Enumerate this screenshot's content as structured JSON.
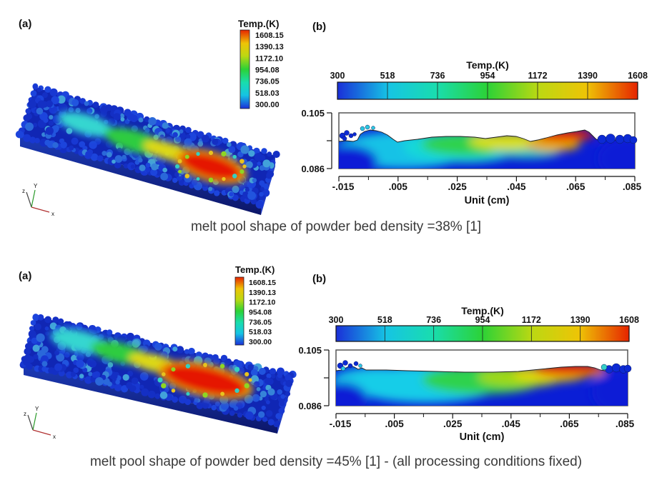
{
  "colors": {
    "temp_scale": [
      "#1a2fd8",
      "#16c4e4",
      "#19ddae",
      "#2cd236",
      "#bcd812",
      "#eec406",
      "#e62400"
    ],
    "substrate_blue": "#0a1ed6",
    "hot_red": "#e51c00",
    "caption_text": "#3a3a3a"
  },
  "figures": [
    {
      "id": "density-38",
      "panel_a": {
        "label": "(a)",
        "legend_title": "Temp.(K)",
        "legend_values": [
          "1608.15",
          "1390.13",
          "1172.10",
          "954.08",
          "736.05",
          "518.03",
          "300.00"
        ],
        "axes": {
          "x": "x",
          "y": "Y",
          "z": "z"
        }
      },
      "panel_b": {
        "label": "(b)",
        "colorbar_title": "Temp.(K)",
        "colorbar_ticks": [
          "300",
          "518",
          "736",
          "954",
          "1172",
          "1390",
          "1608"
        ],
        "y_ticks": [
          "0.105",
          "0.086"
        ],
        "x_ticks": [
          "-.015",
          ".005",
          ".025",
          ".045",
          ".065",
          ".085"
        ],
        "x_axis_label": "Unit (cm)"
      },
      "caption": "melt pool shape of powder bed density =38% [1]"
    },
    {
      "id": "density-45",
      "panel_a": {
        "label": "(a)",
        "legend_title": "Temp.(K)",
        "legend_values": [
          "1608.15",
          "1390.13",
          "1172.10",
          "954.08",
          "736.05",
          "518.03",
          "300.00"
        ],
        "axes": {
          "x": "x",
          "y": "Y",
          "z": "z"
        }
      },
      "panel_b": {
        "label": "(b)",
        "colorbar_title": "Temp.(K)",
        "colorbar_ticks": [
          "300",
          "518",
          "736",
          "954",
          "1172",
          "1390",
          "1608"
        ],
        "y_ticks": [
          "0.105",
          "0.086"
        ],
        "x_ticks": [
          "-.015",
          ".005",
          ".025",
          ".045",
          ".065",
          ".085"
        ],
        "x_axis_label": "Unit (cm)"
      },
      "caption": "melt pool shape of powder bed density =45% [1] - (all processing conditions fixed)"
    }
  ],
  "chart_data": [
    {
      "type": "heatmap",
      "title": "melt pool shape of powder bed density =38% [1]",
      "colorbar": {
        "label": "Temp.(K)",
        "ticks": [
          300,
          518,
          736,
          954,
          1172,
          1390,
          1608
        ],
        "legend_values": [
          1608.15,
          1390.13,
          1172.1,
          954.08,
          736.05,
          518.03,
          300.0
        ],
        "range": [
          300,
          1608.15
        ]
      },
      "x_axis": {
        "label": "Unit (cm)",
        "ticks": [
          -0.015,
          0.005,
          0.025,
          0.045,
          0.065,
          0.085
        ],
        "range": [
          -0.015,
          0.085
        ]
      },
      "y_axis": {
        "ticks": [
          0.105,
          0.086
        ],
        "range": [
          0.086,
          0.105
        ]
      },
      "description": "3D powder-bed view plus 2D section; fragmented melt track with separate cyan, green and yellow warm spots and a red hot spot near x = 0.05-0.065 cm; unmelted blue powder particles at both ends"
    },
    {
      "type": "heatmap",
      "title": "melt pool shape of powder bed density =45% [1] - (all processing conditions fixed)",
      "colorbar": {
        "label": "Temp.(K)",
        "ticks": [
          300,
          518,
          736,
          954,
          1172,
          1390,
          1608
        ],
        "legend_values": [
          1608.15,
          1390.13,
          1172.1,
          954.08,
          736.05,
          518.03,
          300.0
        ],
        "range": [
          300,
          1608.15
        ]
      },
      "x_axis": {
        "label": "Unit (cm)",
        "ticks": [
          -0.015,
          0.005,
          0.025,
          0.045,
          0.065,
          0.085
        ],
        "range": [
          -0.015,
          0.085
        ]
      },
      "y_axis": {
        "ticks": [
          0.105,
          0.086
        ],
        "range": [
          0.086,
          0.105
        ]
      },
      "description": "3D powder-bed view plus 2D section; continuous elongated melt pool with large red region from about x = 0.04 to 0.065 cm and smooth deep thermal plume; blue powder particles at both ends"
    }
  ]
}
